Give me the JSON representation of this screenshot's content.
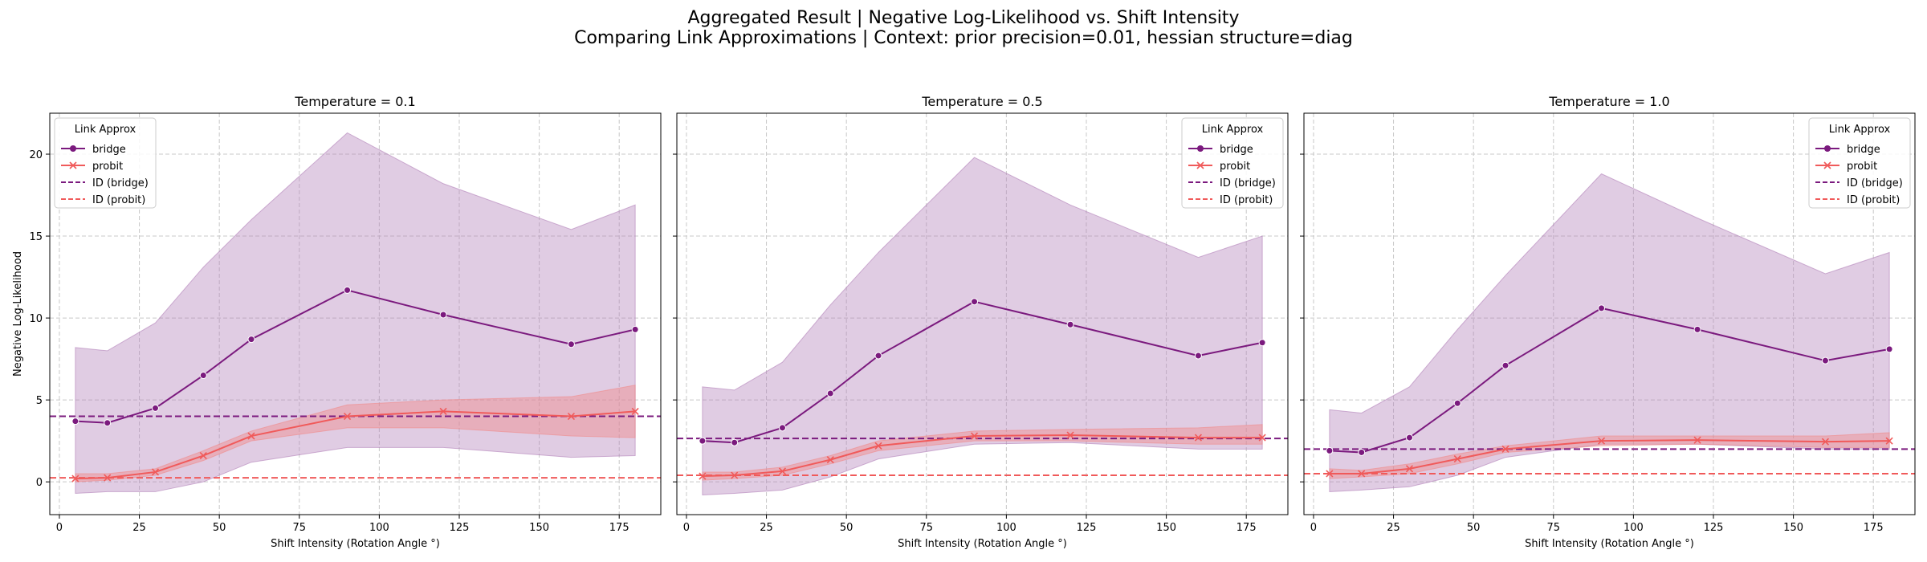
{
  "figure": {
    "title_line1": "Aggregated Result | Negative Log-Likelihood vs. Shift Intensity",
    "title_line2": "Comparing Link Approximations | Context: prior precision=0.01, hessian structure=diag"
  },
  "colors": {
    "bridge": "#7b1a7e",
    "bridge_band": "#b17fb8",
    "probit": "#f05a5a",
    "probit_band": "#f08a8a",
    "grid": "#c8c8c8"
  },
  "chart_data": [
    {
      "type": "line",
      "title": "Temperature = 0.1",
      "xlabel": "Shift Intensity (Rotation Angle °)",
      "ylabel": "Negative Log-Likelihood",
      "xlim": [
        -3,
        188
      ],
      "ylim": [
        -2,
        22.5
      ],
      "xticks": [
        0,
        25,
        50,
        75,
        100,
        125,
        150,
        175
      ],
      "yticks": [
        0,
        5,
        10,
        15,
        20
      ],
      "grid": true,
      "legend": {
        "title": "Link Approx",
        "placement": "top-left",
        "entries": [
          "bridge",
          "probit",
          "ID (bridge)",
          "ID (probit)"
        ]
      },
      "x": [
        5,
        15,
        30,
        45,
        60,
        90,
        120,
        160,
        180
      ],
      "series": [
        {
          "name": "bridge",
          "marker": "circle",
          "values": [
            3.7,
            3.6,
            4.5,
            6.5,
            8.7,
            11.7,
            10.2,
            8.4,
            9.3
          ],
          "lower": [
            -0.7,
            -0.6,
            -0.6,
            0.0,
            1.2,
            2.1,
            2.1,
            1.5,
            1.6
          ],
          "upper": [
            8.2,
            8.0,
            9.7,
            13.1,
            16.0,
            21.3,
            18.2,
            15.4,
            16.9
          ]
        },
        {
          "name": "probit",
          "marker": "x",
          "values": [
            0.2,
            0.25,
            0.6,
            1.6,
            2.8,
            4.0,
            4.3,
            4.0,
            4.3
          ],
          "lower": [
            0.0,
            0.1,
            0.4,
            1.3,
            2.5,
            3.3,
            3.3,
            2.8,
            2.7
          ],
          "upper": [
            0.5,
            0.5,
            0.8,
            1.9,
            3.1,
            4.7,
            5.0,
            5.2,
            5.9
          ]
        }
      ],
      "hlines": [
        {
          "name": "ID (bridge)",
          "y": 4.0
        },
        {
          "name": "ID (probit)",
          "y": 0.25
        }
      ]
    },
    {
      "type": "line",
      "title": "Temperature = 0.5",
      "xlabel": "Shift Intensity (Rotation Angle °)",
      "ylabel": "",
      "xlim": [
        -3,
        188
      ],
      "ylim": [
        -2,
        22.5
      ],
      "xticks": [
        0,
        25,
        50,
        75,
        100,
        125,
        150,
        175
      ],
      "yticks": [
        0,
        5,
        10,
        15,
        20
      ],
      "grid": true,
      "legend": {
        "title": "Link Approx",
        "placement": "top-right",
        "entries": [
          "bridge",
          "probit",
          "ID (bridge)",
          "ID (probit)"
        ]
      },
      "x": [
        5,
        15,
        30,
        45,
        60,
        90,
        120,
        160,
        180
      ],
      "series": [
        {
          "name": "bridge",
          "marker": "circle",
          "values": [
            2.5,
            2.4,
            3.3,
            5.4,
            7.7,
            11.0,
            9.6,
            7.7,
            8.5
          ],
          "lower": [
            -0.8,
            -0.7,
            -0.5,
            0.3,
            1.4,
            2.3,
            2.4,
            2.0,
            2.0
          ],
          "upper": [
            5.8,
            5.6,
            7.3,
            10.8,
            14.0,
            19.8,
            16.9,
            13.7,
            15.0
          ]
        },
        {
          "name": "probit",
          "marker": "x",
          "values": [
            0.35,
            0.4,
            0.65,
            1.35,
            2.2,
            2.8,
            2.85,
            2.7,
            2.7
          ],
          "lower": [
            0.1,
            0.2,
            0.4,
            1.1,
            1.9,
            2.5,
            2.5,
            2.3,
            2.3
          ],
          "upper": [
            0.6,
            0.6,
            0.9,
            1.6,
            2.5,
            3.1,
            3.2,
            3.3,
            3.5
          ]
        }
      ],
      "hlines": [
        {
          "name": "ID (bridge)",
          "y": 2.65
        },
        {
          "name": "ID (probit)",
          "y": 0.4
        }
      ]
    },
    {
      "type": "line",
      "title": "Temperature = 1.0",
      "xlabel": "Shift Intensity (Rotation Angle °)",
      "ylabel": "",
      "xlim": [
        -3,
        188
      ],
      "ylim": [
        -2,
        22.5
      ],
      "xticks": [
        0,
        25,
        50,
        75,
        100,
        125,
        150,
        175
      ],
      "yticks": [
        0,
        5,
        10,
        15,
        20
      ],
      "grid": true,
      "legend": {
        "title": "Link Approx",
        "placement": "top-right",
        "entries": [
          "bridge",
          "probit",
          "ID (bridge)",
          "ID (probit)"
        ]
      },
      "x": [
        5,
        15,
        30,
        45,
        60,
        90,
        120,
        160,
        180
      ],
      "series": [
        {
          "name": "bridge",
          "marker": "circle",
          "values": [
            1.9,
            1.8,
            2.7,
            4.8,
            7.1,
            10.6,
            9.3,
            7.4,
            8.1
          ],
          "lower": [
            -0.6,
            -0.5,
            -0.3,
            0.4,
            1.5,
            2.3,
            2.3,
            2.0,
            2.0
          ],
          "upper": [
            4.4,
            4.2,
            5.8,
            9.3,
            12.6,
            18.8,
            16.1,
            12.7,
            14.0
          ]
        },
        {
          "name": "probit",
          "marker": "x",
          "values": [
            0.5,
            0.5,
            0.8,
            1.4,
            2.0,
            2.5,
            2.55,
            2.45,
            2.5
          ],
          "lower": [
            0.2,
            0.3,
            0.5,
            1.1,
            1.8,
            2.2,
            2.3,
            2.1,
            2.1
          ],
          "upper": [
            0.8,
            0.7,
            1.1,
            1.7,
            2.2,
            2.8,
            2.8,
            2.8,
            3.0
          ]
        }
      ],
      "hlines": [
        {
          "name": "ID (bridge)",
          "y": 2.0
        },
        {
          "name": "ID (probit)",
          "y": 0.5
        }
      ]
    }
  ]
}
